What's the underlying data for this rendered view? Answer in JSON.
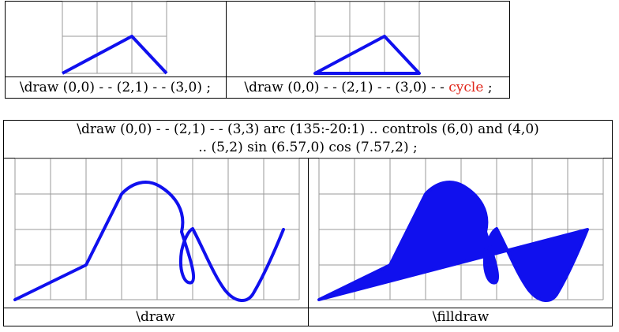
{
  "top_table": {
    "left_caption": "\\draw (0,0) - - (2,1) - - (3,0) ;",
    "right_caption_prefix": "\\draw (0,0) - - (2,1) - - (3,0) - -",
    "right_caption_keyword": "cycle",
    "right_caption_suffix": ";",
    "keyword_color": "#e0261a"
  },
  "bottom_table": {
    "header_line1": "\\draw (0,0) - - (2,1) - - (3,3) arc (135:-20:1) .. controls (6,0) and (4,0)",
    "header_line2": ".. (5,2) sin (6.57,0) cos (7.57,2) ;",
    "left_caption": "\\draw",
    "right_caption": "\\filldraw"
  },
  "colors": {
    "path": "#1010ee",
    "grid": "#9a9a9a"
  }
}
